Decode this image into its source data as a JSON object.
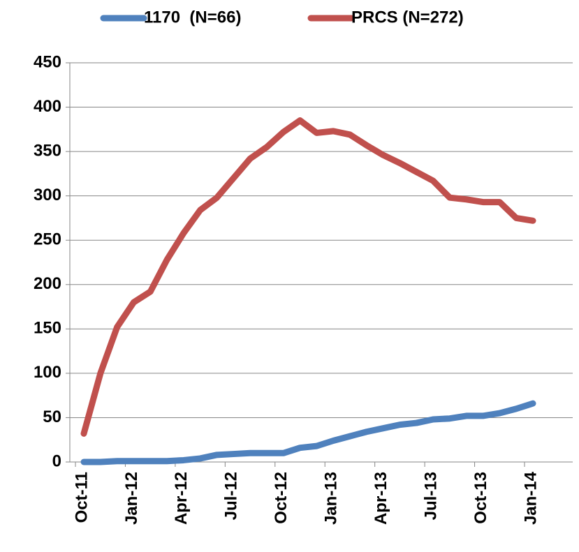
{
  "chart_data": {
    "type": "line",
    "categories": [
      "Oct-11",
      null,
      null,
      "Jan-12",
      null,
      null,
      "Apr-12",
      null,
      null,
      "Jul-12",
      null,
      null,
      "Oct-12",
      null,
      null,
      "Jan-13",
      null,
      null,
      "Apr-13",
      null,
      null,
      "Jul-13",
      null,
      null,
      "Oct-13",
      null,
      null,
      "Jan-14"
    ],
    "series": [
      {
        "name": "1170  (N=66)",
        "color": "#4f81bd",
        "values": [
          0,
          0,
          1,
          1,
          1,
          1,
          2,
          4,
          8,
          9,
          10,
          10,
          10,
          16,
          18,
          24,
          29,
          34,
          38,
          42,
          44,
          48,
          49,
          52,
          52,
          55,
          60,
          66
        ]
      },
      {
        "name": "PRCS (N=272)",
        "color": "#c0504d",
        "values": [
          32,
          100,
          152,
          180,
          192,
          228,
          258,
          284,
          298,
          320,
          342,
          355,
          372,
          385,
          371,
          373,
          369,
          357,
          346,
          337,
          327,
          317,
          298,
          296,
          293,
          293,
          275,
          272
        ]
      }
    ],
    "ylim": [
      0,
      450
    ],
    "yticks": [
      0,
      50,
      100,
      150,
      200,
      250,
      300,
      350,
      400,
      450
    ],
    "grid": true
  }
}
